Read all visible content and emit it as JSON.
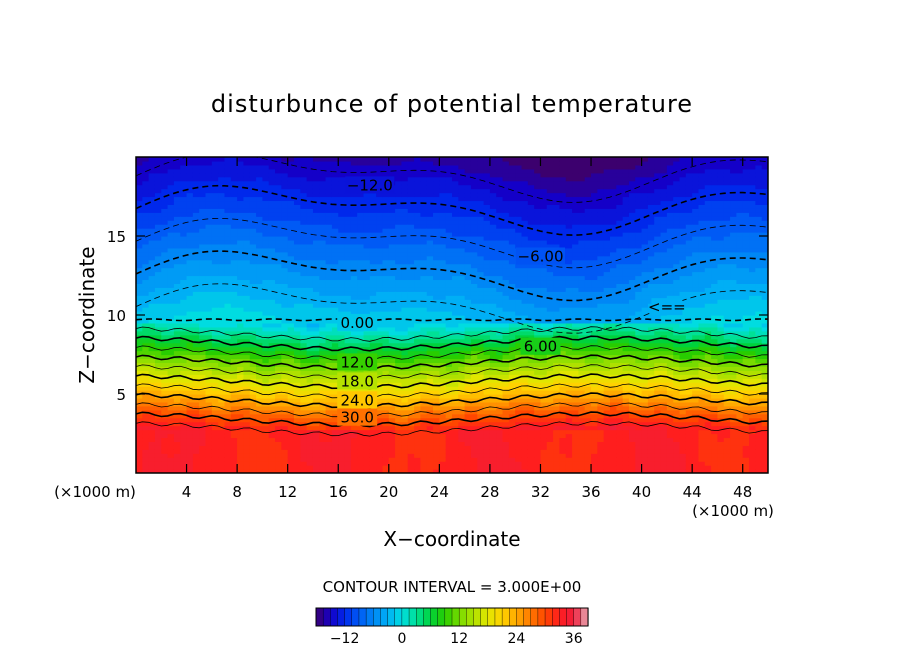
{
  "chart_data": {
    "type": "heatmap",
    "title": "disturbunce of potential temperature",
    "xlabel": "X−coordinate",
    "ylabel": "Z−coordinate",
    "x_unit_left": "(×1000 m)",
    "x_unit_right": "(×1000 m)",
    "xlim": [
      0,
      50
    ],
    "ylim": [
      0,
      20
    ],
    "x_ticks": [
      4,
      8,
      12,
      16,
      20,
      24,
      28,
      32,
      36,
      40,
      44,
      48
    ],
    "x_tick_labels": [
      "4",
      "8",
      "12",
      "16",
      "20",
      "24",
      "28",
      "32",
      "36",
      "40",
      "44",
      "48"
    ],
    "y_ticks": [
      5,
      10,
      15
    ],
    "y_tick_labels": [
      "5",
      "10",
      "15"
    ],
    "contour_interval_text": "CONTOUR INTERVAL = 3.000E+00",
    "value_range": [
      -18,
      39
    ],
    "contour_labels": [
      {
        "text": "−12.0",
        "x": 18.5,
        "z": 18.2
      },
      {
        "text": "−6.00",
        "x": 32,
        "z": 13.7
      },
      {
        "text": "0.00",
        "x": 17.5,
        "z": 9.5
      },
      {
        "text": "6.00",
        "x": 32,
        "z": 8.0
      },
      {
        "text": "12.0",
        "x": 17.5,
        "z": 7.0
      },
      {
        "text": "18.0",
        "x": 17.5,
        "z": 5.8
      },
      {
        "text": "24.0",
        "x": 17.5,
        "z": 4.6
      },
      {
        "text": "30.0",
        "x": 17.5,
        "z": 3.5
      },
      {
        "text": "<==",
        "x": 42,
        "z": 10.5
      }
    ],
    "colorbar": {
      "ticks": [
        -12,
        0,
        12,
        24,
        36
      ],
      "tick_labels": [
        "−12",
        "0",
        "12",
        "24",
        "36"
      ],
      "min": -18,
      "max": 39
    }
  }
}
